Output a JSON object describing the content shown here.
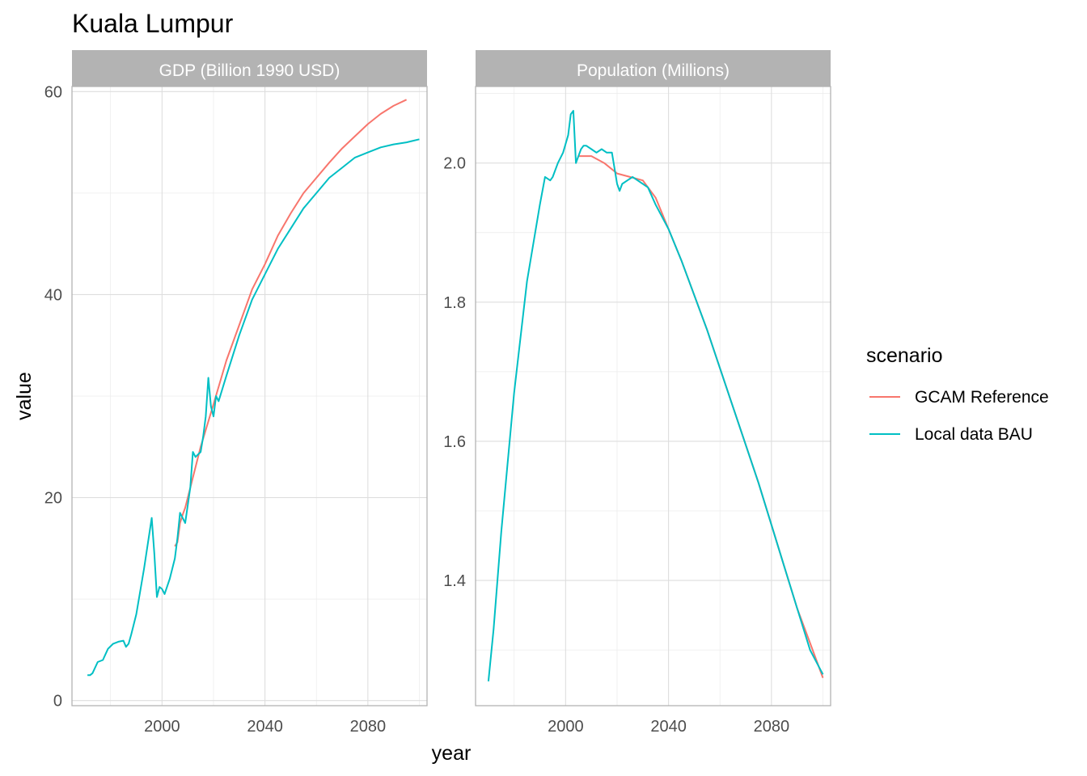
{
  "chart_data": {
    "type": "line",
    "title": "Kuala Lumpur",
    "xlabel": "year",
    "ylabel": "value",
    "legend": {
      "title": "scenario",
      "position": "right",
      "entries": [
        {
          "name": "GCAM Reference",
          "color": "#F8766D"
        },
        {
          "name": "Local data BAU",
          "color": "#00BFC4"
        }
      ]
    },
    "grid": true,
    "panels": [
      {
        "strip": "GDP (Billion 1990 USD)",
        "xlim": [
          1965,
          2103
        ],
        "ylim": [
          -0.5,
          60.5
        ],
        "xticks": [
          2000,
          2040,
          2080
        ],
        "yticks": [
          0,
          20,
          40,
          60
        ],
        "tick_labels": [
          "0",
          "20",
          "40",
          "60"
        ],
        "series": [
          {
            "name": "GCAM Reference",
            "x": [
              2005,
              2006,
              2007,
              2008,
              2009,
              2010,
              2015,
              2020,
              2025,
              2030,
              2035,
              2040,
              2045,
              2050,
              2055,
              2060,
              2065,
              2070,
              2075,
              2080,
              2085,
              2090,
              2095
            ],
            "y": [
              15.2,
              15.6,
              17.5,
              18.3,
              19,
              20,
              25,
              29.2,
              33.5,
              37,
              40.5,
              43,
              45.8,
              48,
              50,
              51.5,
              53,
              54.4,
              55.6,
              56.8,
              57.8,
              58.6,
              59.2
            ]
          },
          {
            "name": "Local data BAU",
            "x": [
              1971,
              1972,
              1973,
              1975,
              1977,
              1979,
              1981,
              1983,
              1985,
              1986,
              1987,
              1988,
              1990,
              1993,
              1996,
              1997,
              1998,
              1999,
              2000,
              2001,
              2003,
              2005,
              2006,
              2007,
              2008,
              2009,
              2011,
              2012,
              2013,
              2015,
              2016,
              2017,
              2018,
              2019,
              2020,
              2021,
              2022,
              2025,
              2030,
              2035,
              2040,
              2045,
              2050,
              2055,
              2060,
              2065,
              2070,
              2075,
              2080,
              2085,
              2090,
              2095,
              2100
            ],
            "y": [
              2.5,
              2.5,
              2.7,
              3.8,
              4.0,
              5.1,
              5.6,
              5.8,
              5.9,
              5.3,
              5.6,
              6.5,
              8.5,
              13,
              18,
              14.5,
              10.2,
              11.2,
              11,
              10.5,
              12,
              14,
              16,
              18.5,
              18,
              17.5,
              21,
              24.5,
              24,
              24.5,
              26,
              28,
              31.8,
              29,
              28,
              30,
              29.5,
              32,
              36,
              39.5,
              42,
              44.5,
              46.5,
              48.5,
              50,
              51.5,
              52.5,
              53.5,
              54,
              54.5,
              54.8,
              55,
              55.3
            ]
          }
        ]
      },
      {
        "strip": "Population (Millions)",
        "xlim": [
          1965,
          2103
        ],
        "ylim": [
          1.22,
          2.11
        ],
        "xticks": [
          2000,
          2040,
          2080
        ],
        "yticks": [
          1.4,
          1.6,
          1.8,
          2.0
        ],
        "tick_labels": [
          "1.4",
          "1.6",
          "1.8",
          "2.0"
        ],
        "series": [
          {
            "name": "GCAM Reference",
            "x": [
              2005,
              2010,
              2015,
              2020,
              2025,
              2030,
              2035,
              2040,
              2045,
              2050,
              2055,
              2060,
              2065,
              2070,
              2075,
              2080,
              2085,
              2090,
              2095,
              2100
            ],
            "y": [
              2.01,
              2.01,
              2.0,
              1.985,
              1.98,
              1.975,
              1.95,
              1.905,
              1.86,
              1.81,
              1.76,
              1.705,
              1.65,
              1.595,
              1.54,
              1.48,
              1.42,
              1.36,
              1.31,
              1.26
            ]
          },
          {
            "name": "Local data BAU",
            "x": [
              1970,
              1972,
              1975,
              1980,
              1985,
              1990,
              1992,
              1994,
              1995,
              1997,
              1999,
              2001,
              2002,
              2003,
              2004,
              2005,
              2006,
              2007,
              2008,
              2010,
              2012,
              2014,
              2016,
              2018,
              2020,
              2021,
              2022,
              2024,
              2026,
              2028,
              2030,
              2032,
              2035,
              2040,
              2045,
              2050,
              2055,
              2060,
              2065,
              2070,
              2075,
              2080,
              2085,
              2090,
              2095,
              2100
            ],
            "y": [
              1.255,
              1.33,
              1.47,
              1.67,
              1.83,
              1.94,
              1.98,
              1.975,
              1.98,
              2.0,
              2.015,
              2.04,
              2.07,
              2.075,
              2.0,
              2.01,
              2.02,
              2.025,
              2.025,
              2.02,
              2.015,
              2.02,
              2.015,
              2.015,
              1.97,
              1.96,
              1.97,
              1.975,
              1.98,
              1.975,
              1.97,
              1.965,
              1.94,
              1.905,
              1.86,
              1.81,
              1.76,
              1.705,
              1.65,
              1.595,
              1.54,
              1.48,
              1.42,
              1.36,
              1.3,
              1.265
            ]
          }
        ]
      }
    ]
  }
}
